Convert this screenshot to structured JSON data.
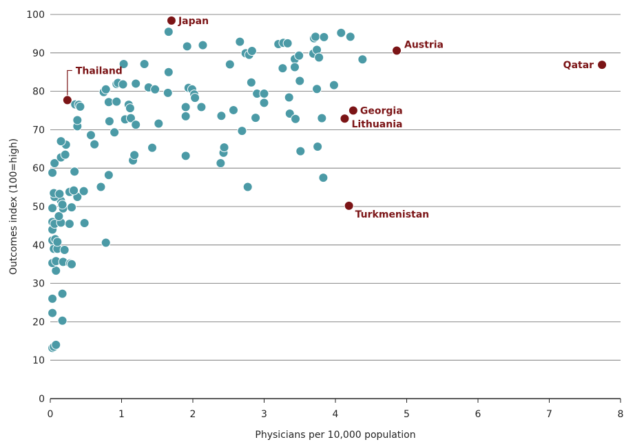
{
  "colors": {
    "point": "#4b9aa6",
    "highlight": "#7b1416",
    "grid": "#666666",
    "text": "#222222"
  },
  "chart_data": {
    "type": "scatter",
    "xlabel": "Physicians per 10,000 population",
    "ylabel": "Outcomes index (100=high)",
    "xlim": [
      0,
      8
    ],
    "ylim": [
      0,
      100
    ],
    "x_ticks": [
      "0",
      "1",
      "2",
      "3",
      "4",
      "5",
      "6",
      "7",
      "8"
    ],
    "y_ticks": [
      "0",
      "10",
      "20",
      "30",
      "40",
      "50",
      "60",
      "70",
      "80",
      "90",
      "100"
    ],
    "grid": "horizontal",
    "points": [
      {
        "x": 0.03,
        "y": 13.2
      },
      {
        "x": 0.05,
        "y": 13.5
      },
      {
        "x": 0.08,
        "y": 14
      },
      {
        "x": 0.03,
        "y": 22.3
      },
      {
        "x": 0.17,
        "y": 20.3
      },
      {
        "x": 0.03,
        "y": 26
      },
      {
        "x": 0.17,
        "y": 27.3
      },
      {
        "x": 0.08,
        "y": 33.3
      },
      {
        "x": 0.03,
        "y": 35.3
      },
      {
        "x": 0.08,
        "y": 35.8
      },
      {
        "x": 0.18,
        "y": 35.6
      },
      {
        "x": 0.28,
        "y": 35.2
      },
      {
        "x": 0.3,
        "y": 35
      },
      {
        "x": 0.05,
        "y": 39
      },
      {
        "x": 0.1,
        "y": 39
      },
      {
        "x": 0.2,
        "y": 38.7
      },
      {
        "x": 0.03,
        "y": 41.2
      },
      {
        "x": 0.07,
        "y": 41.5
      },
      {
        "x": 0.1,
        "y": 40.8
      },
      {
        "x": 0.78,
        "y": 40.6
      },
      {
        "x": 0.03,
        "y": 44
      },
      {
        "x": 0.03,
        "y": 46
      },
      {
        "x": 0.06,
        "y": 45.5
      },
      {
        "x": 0.15,
        "y": 45.8
      },
      {
        "x": 0.27,
        "y": 45.5
      },
      {
        "x": 0.48,
        "y": 45.7
      },
      {
        "x": 0.12,
        "y": 47.5
      },
      {
        "x": 0.03,
        "y": 49.6
      },
      {
        "x": 0.18,
        "y": 49.5
      },
      {
        "x": 0.3,
        "y": 49.8
      },
      {
        "x": 0.15,
        "y": 51.5
      },
      {
        "x": 0.17,
        "y": 50.5
      },
      {
        "x": 0.06,
        "y": 52.5
      },
      {
        "x": 0.38,
        "y": 52.5
      },
      {
        "x": 0.05,
        "y": 53.5
      },
      {
        "x": 0.13,
        "y": 53.3
      },
      {
        "x": 0.27,
        "y": 53.8
      },
      {
        "x": 0.33,
        "y": 54.2
      },
      {
        "x": 0.47,
        "y": 54
      },
      {
        "x": 0.71,
        "y": 55.1
      },
      {
        "x": 0.82,
        "y": 58.2
      },
      {
        "x": 0.03,
        "y": 58.8
      },
      {
        "x": 0.34,
        "y": 59.1
      },
      {
        "x": 0.06,
        "y": 61.3
      },
      {
        "x": 0.15,
        "y": 62.8
      },
      {
        "x": 0.21,
        "y": 63.5
      },
      {
        "x": 0.22,
        "y": 66.1
      },
      {
        "x": 0.15,
        "y": 67
      },
      {
        "x": 0.57,
        "y": 68.6
      },
      {
        "x": 0.62,
        "y": 66.2
      },
      {
        "x": 0.38,
        "y": 70.9
      },
      {
        "x": 0.38,
        "y": 72.5
      },
      {
        "x": 0.35,
        "y": 76.6
      },
      {
        "x": 0.4,
        "y": 76.5
      },
      {
        "x": 0.42,
        "y": 76
      },
      {
        "x": 0.75,
        "y": 79.8
      },
      {
        "x": 0.78,
        "y": 80.5
      },
      {
        "x": 0.82,
        "y": 77.2
      },
      {
        "x": 0.83,
        "y": 72.2
      },
      {
        "x": 0.9,
        "y": 69.3
      },
      {
        "x": 0.93,
        "y": 77.3
      },
      {
        "x": 0.93,
        "y": 81.9
      },
      {
        "x": 0.95,
        "y": 82.2
      },
      {
        "x": 1.02,
        "y": 81.8
      },
      {
        "x": 1.03,
        "y": 87.1
      },
      {
        "x": 1.05,
        "y": 72.7
      },
      {
        "x": 1.1,
        "y": 76.5
      },
      {
        "x": 1.12,
        "y": 75.6
      },
      {
        "x": 1.13,
        "y": 73
      },
      {
        "x": 1.16,
        "y": 62
      },
      {
        "x": 1.18,
        "y": 63.4
      },
      {
        "x": 1.2,
        "y": 71.3
      },
      {
        "x": 1.2,
        "y": 82
      },
      {
        "x": 1.32,
        "y": 87.1
      },
      {
        "x": 1.38,
        "y": 81
      },
      {
        "x": 1.43,
        "y": 65.3
      },
      {
        "x": 1.47,
        "y": 80.5
      },
      {
        "x": 1.52,
        "y": 71.6
      },
      {
        "x": 1.65,
        "y": 79.6
      },
      {
        "x": 1.66,
        "y": 85
      },
      {
        "x": 1.66,
        "y": 95.5
      },
      {
        "x": 1.9,
        "y": 63.2
      },
      {
        "x": 1.9,
        "y": 73.5
      },
      {
        "x": 1.9,
        "y": 75.9
      },
      {
        "x": 1.92,
        "y": 91.7
      },
      {
        "x": 1.94,
        "y": 80.9
      },
      {
        "x": 1.99,
        "y": 80.5
      },
      {
        "x": 2.02,
        "y": 79.2
      },
      {
        "x": 2.03,
        "y": 78.3
      },
      {
        "x": 2.12,
        "y": 75.9
      },
      {
        "x": 2.14,
        "y": 92
      },
      {
        "x": 2.39,
        "y": 61.3
      },
      {
        "x": 2.4,
        "y": 73.6
      },
      {
        "x": 2.43,
        "y": 64
      },
      {
        "x": 2.44,
        "y": 65.4
      },
      {
        "x": 2.52,
        "y": 87
      },
      {
        "x": 2.57,
        "y": 75.1
      },
      {
        "x": 2.66,
        "y": 92.9
      },
      {
        "x": 2.69,
        "y": 69.7
      },
      {
        "x": 2.74,
        "y": 89.9
      },
      {
        "x": 2.77,
        "y": 55.1
      },
      {
        "x": 2.79,
        "y": 89.5
      },
      {
        "x": 2.82,
        "y": 82.3
      },
      {
        "x": 2.83,
        "y": 90.5
      },
      {
        "x": 2.88,
        "y": 73.1
      },
      {
        "x": 2.9,
        "y": 79.4
      },
      {
        "x": 3.0,
        "y": 79.4
      },
      {
        "x": 3.0,
        "y": 77
      },
      {
        "x": 3.2,
        "y": 92.3
      },
      {
        "x": 3.26,
        "y": 86
      },
      {
        "x": 3.27,
        "y": 92.6
      },
      {
        "x": 3.33,
        "y": 92.5
      },
      {
        "x": 3.35,
        "y": 78.4
      },
      {
        "x": 3.36,
        "y": 74.2
      },
      {
        "x": 3.43,
        "y": 88.4
      },
      {
        "x": 3.43,
        "y": 86.3
      },
      {
        "x": 3.44,
        "y": 72.8
      },
      {
        "x": 3.49,
        "y": 89.3
      },
      {
        "x": 3.5,
        "y": 82.7
      },
      {
        "x": 3.51,
        "y": 64.4
      },
      {
        "x": 3.69,
        "y": 89.8
      },
      {
        "x": 3.7,
        "y": 93.8
      },
      {
        "x": 3.72,
        "y": 94.2
      },
      {
        "x": 3.74,
        "y": 80.6
      },
      {
        "x": 3.74,
        "y": 90.8
      },
      {
        "x": 3.75,
        "y": 65.6
      },
      {
        "x": 3.77,
        "y": 88.8
      },
      {
        "x": 3.81,
        "y": 73
      },
      {
        "x": 3.83,
        "y": 57.5
      },
      {
        "x": 3.84,
        "y": 94.1
      },
      {
        "x": 3.98,
        "y": 81.6
      },
      {
        "x": 4.08,
        "y": 95.2
      },
      {
        "x": 4.21,
        "y": 94.2
      },
      {
        "x": 4.38,
        "y": 88.3
      }
    ],
    "highlights": [
      {
        "label": "Japan",
        "x": 1.7,
        "y": 98.4
      },
      {
        "label": "Austria",
        "x": 4.86,
        "y": 90.6
      },
      {
        "label": "Qatar",
        "x": 7.74,
        "y": 86.9
      },
      {
        "label": "Thailand",
        "x": 0.24,
        "y": 77.7
      },
      {
        "label": "Georgia",
        "x": 4.25,
        "y": 75
      },
      {
        "label": "Lithuania",
        "x": 4.13,
        "y": 72.9
      },
      {
        "label": "Turkmenistan",
        "x": 4.19,
        "y": 50.2
      }
    ]
  }
}
